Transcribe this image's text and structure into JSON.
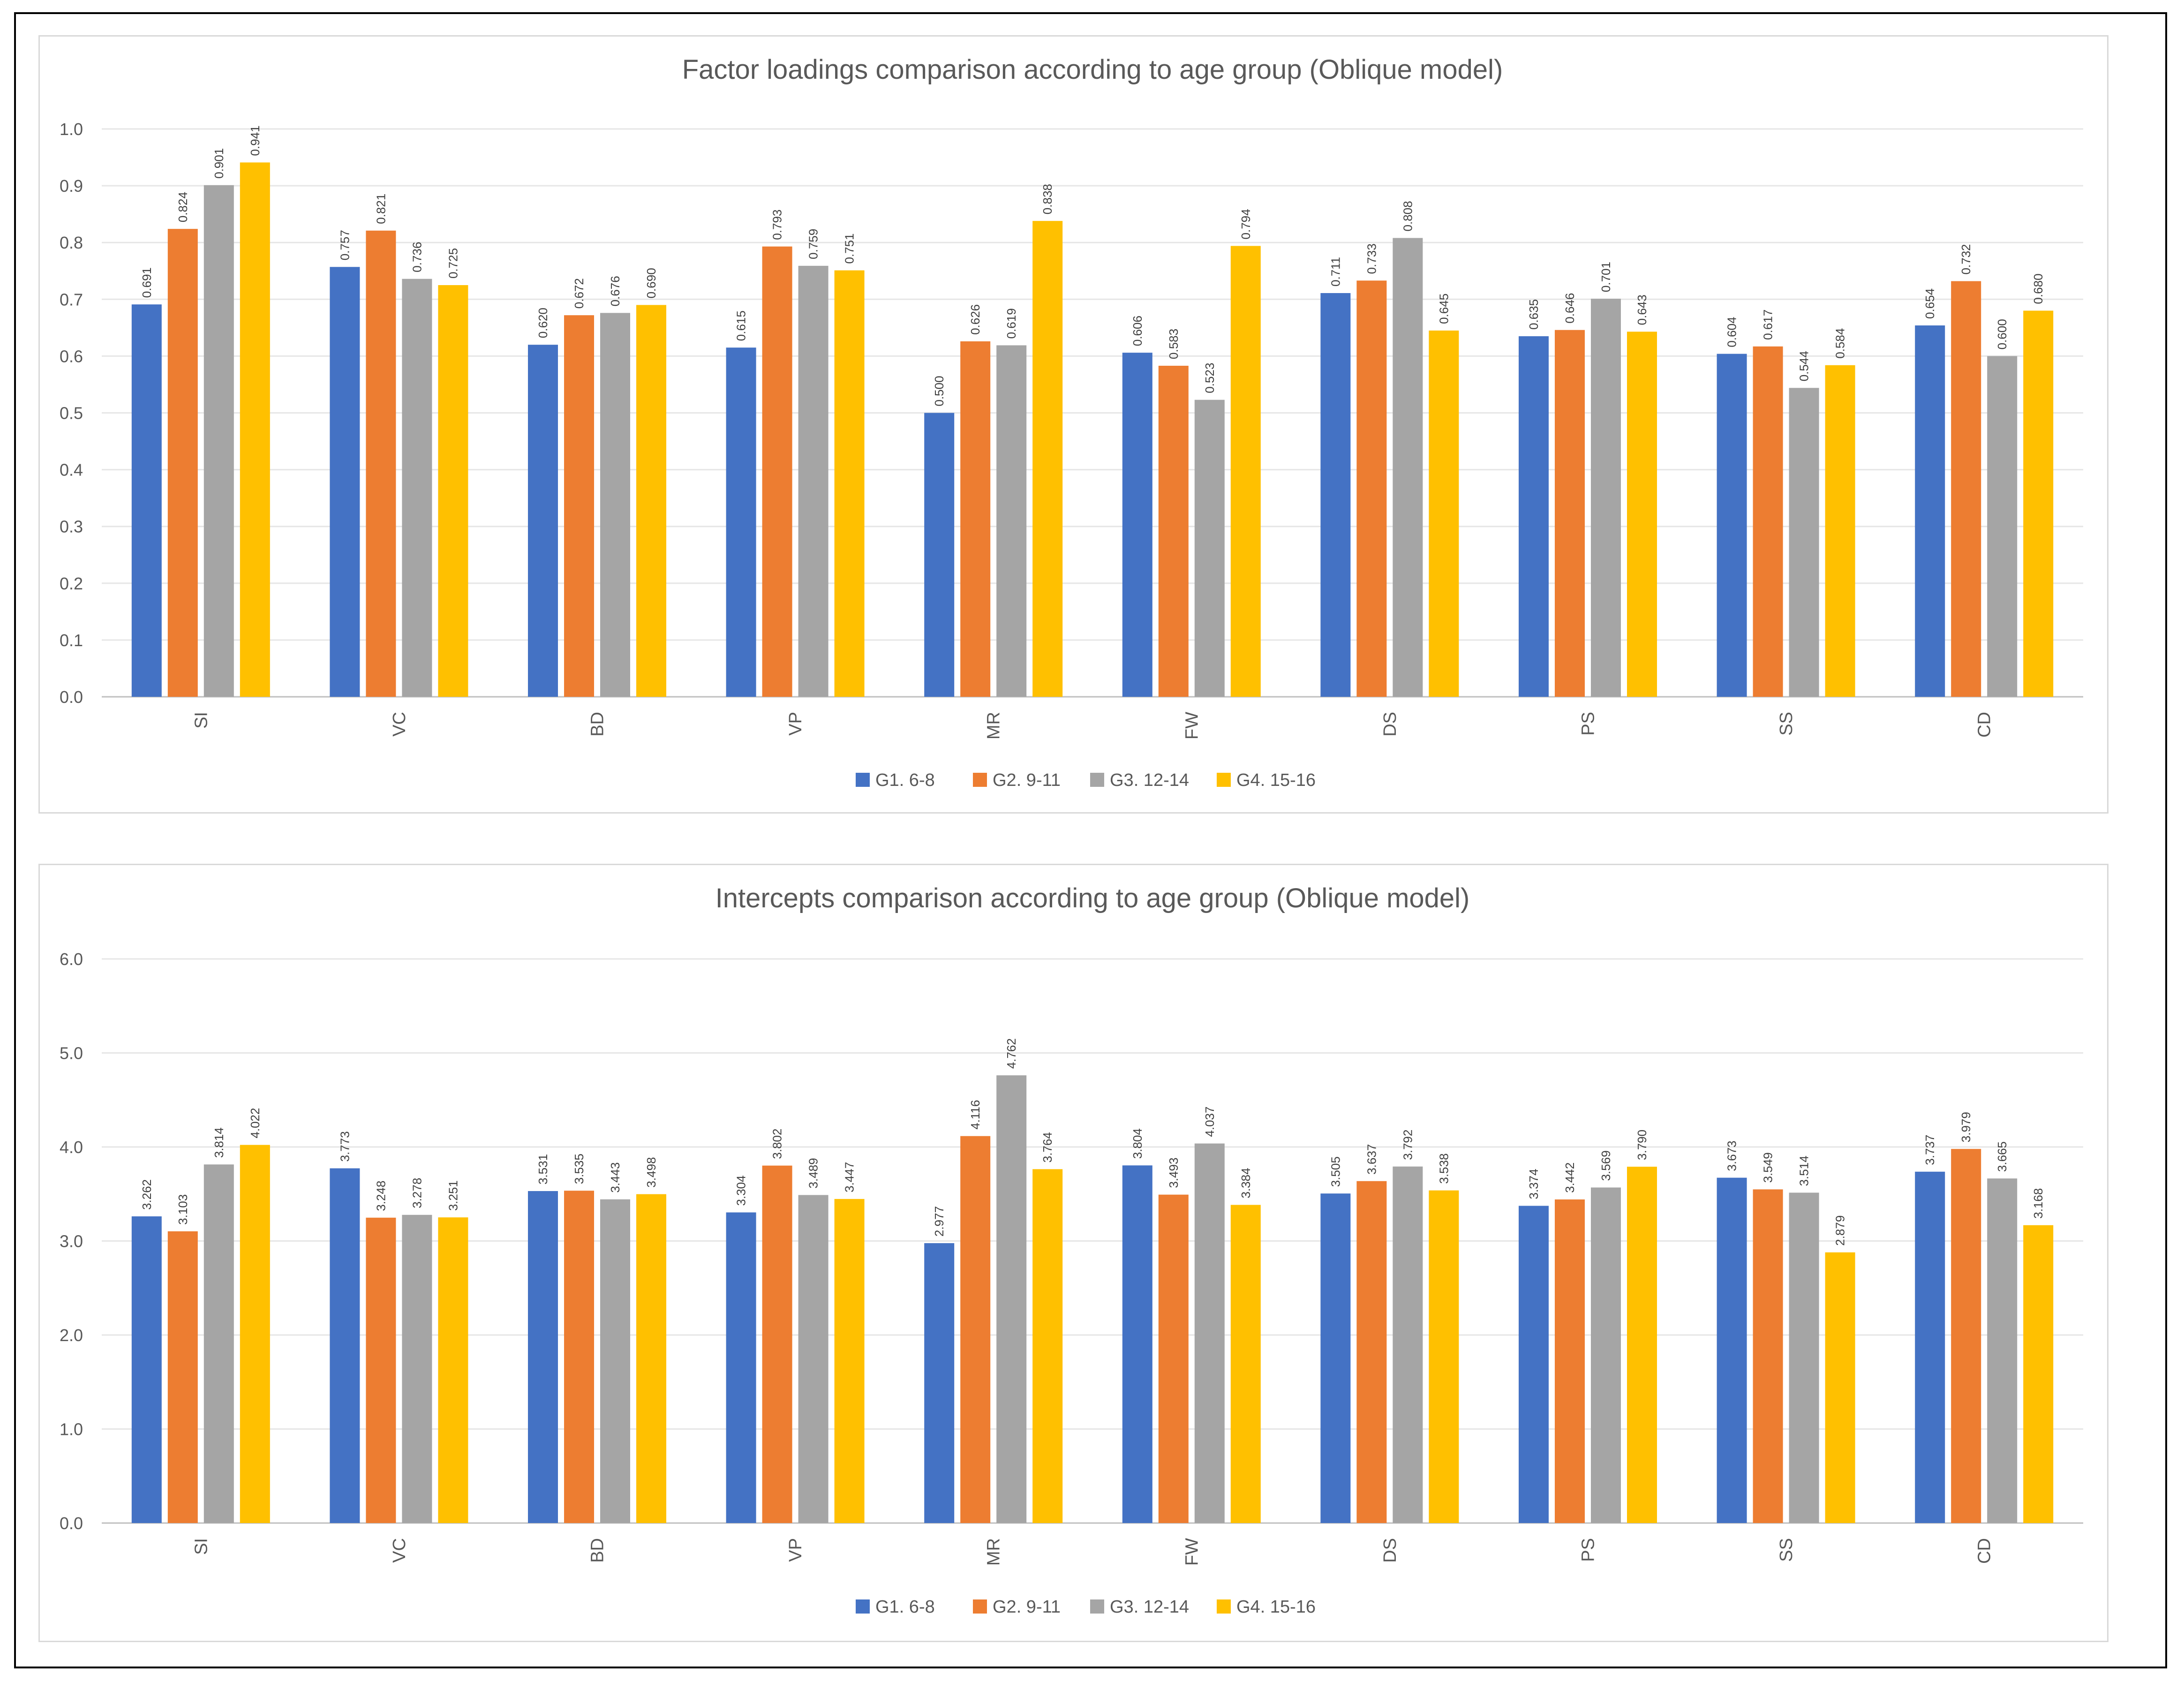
{
  "colors": {
    "G1": "#4472c4",
    "G2": "#ed7d31",
    "G3": "#a5a5a5",
    "G4": "#ffc000",
    "gridline": "#e6e6e6",
    "axis": "#bfbfbf",
    "text": "#595959"
  },
  "chart_data": [
    {
      "type": "bar",
      "title": "Factor loadings comparison according to age group (Oblique model)",
      "categories": [
        "SI",
        "VC",
        "BD",
        "VP",
        "MR",
        "FW",
        "DS",
        "PS",
        "SS",
        "CD"
      ],
      "series": [
        {
          "name": "G1. 6-8",
          "values": [
            0.691,
            0.757,
            0.62,
            0.615,
            0.5,
            0.606,
            0.711,
            0.635,
            0.604,
            0.654
          ],
          "labels": [
            "0.691",
            "0.757",
            "0.620",
            "0.615",
            "0.500",
            "0.606",
            "0.711",
            "0.635",
            "0.604",
            "0.654"
          ]
        },
        {
          "name": "G2. 9-11",
          "values": [
            0.824,
            0.821,
            0.672,
            0.793,
            0.626,
            0.583,
            0.733,
            0.646,
            0.617,
            0.732
          ],
          "labels": [
            "0.824",
            "0.821",
            "0.672",
            "0.793",
            "0.626",
            "0.583",
            "0.733",
            "0.646",
            "0.617",
            "0.732"
          ]
        },
        {
          "name": "G3. 12-14",
          "values": [
            0.901,
            0.736,
            0.676,
            0.759,
            0.619,
            0.523,
            0.808,
            0.701,
            0.544,
            0.6
          ],
          "labels": [
            "0.901",
            "0.736",
            "0.676",
            "0.759",
            "0.619",
            "0.523",
            "0.808",
            "0.701",
            "0.544",
            "0.600"
          ]
        },
        {
          "name": "G4. 15-16",
          "values": [
            0.941,
            0.725,
            0.69,
            0.751,
            0.838,
            0.794,
            0.645,
            0.643,
            0.584,
            0.68
          ],
          "labels": [
            "0.941",
            "0.725",
            "0.690",
            "0.751",
            "0.838",
            "0.794",
            "0.645",
            "0.643",
            "0.584",
            "0.680"
          ]
        }
      ],
      "ylim": [
        0,
        1.0
      ],
      "yticks": [
        "0.0",
        "0.1",
        "0.2",
        "0.3",
        "0.4",
        "0.5",
        "0.6",
        "0.7",
        "0.8",
        "0.9",
        "1.0"
      ],
      "grid": true,
      "legend_position": "bottom"
    },
    {
      "type": "bar",
      "title": "Intercepts comparison according to age group (Oblique model)",
      "categories": [
        "SI",
        "VC",
        "BD",
        "VP",
        "MR",
        "FW",
        "DS",
        "PS",
        "SS",
        "CD"
      ],
      "series": [
        {
          "name": "G1. 6-8",
          "values": [
            3.262,
            3.773,
            3.531,
            3.304,
            2.977,
            3.804,
            3.505,
            3.374,
            3.673,
            3.737
          ],
          "labels": [
            "3.262",
            "3.773",
            "3.531",
            "3.304",
            "2.977",
            "3.804",
            "3.505",
            "3.374",
            "3.673",
            "3.737"
          ]
        },
        {
          "name": "G2. 9-11",
          "values": [
            3.103,
            3.248,
            3.535,
            3.802,
            4.116,
            3.493,
            3.637,
            3.442,
            3.549,
            3.979
          ],
          "labels": [
            "3.103",
            "3.248",
            "3.535",
            "3.802",
            "4.116",
            "3.493",
            "3.637",
            "3.442",
            "3.549",
            "3.979"
          ]
        },
        {
          "name": "G3. 12-14",
          "values": [
            3.814,
            3.278,
            3.443,
            3.489,
            4.762,
            4.037,
            3.792,
            3.569,
            3.514,
            3.665
          ],
          "labels": [
            "3.814",
            "3.278",
            "3.443",
            "3.489",
            "4.762",
            "4.037",
            "3.792",
            "3.569",
            "3.514",
            "3.665"
          ]
        },
        {
          "name": "G4. 15-16",
          "values": [
            4.022,
            3.251,
            3.498,
            3.447,
            3.764,
            3.384,
            3.538,
            3.79,
            2.879,
            3.168
          ],
          "labels": [
            "4.022",
            "3.251",
            "3.498",
            "3.447",
            "3.764",
            "3.384",
            "3.538",
            "3.790",
            "2.879",
            "3.168"
          ]
        }
      ],
      "ylim": [
        0,
        6.0
      ],
      "yticks": [
        "0.0",
        "1.0",
        "2.0",
        "3.0",
        "4.0",
        "5.0",
        "6.0"
      ],
      "grid": true,
      "legend_position": "bottom"
    }
  ]
}
